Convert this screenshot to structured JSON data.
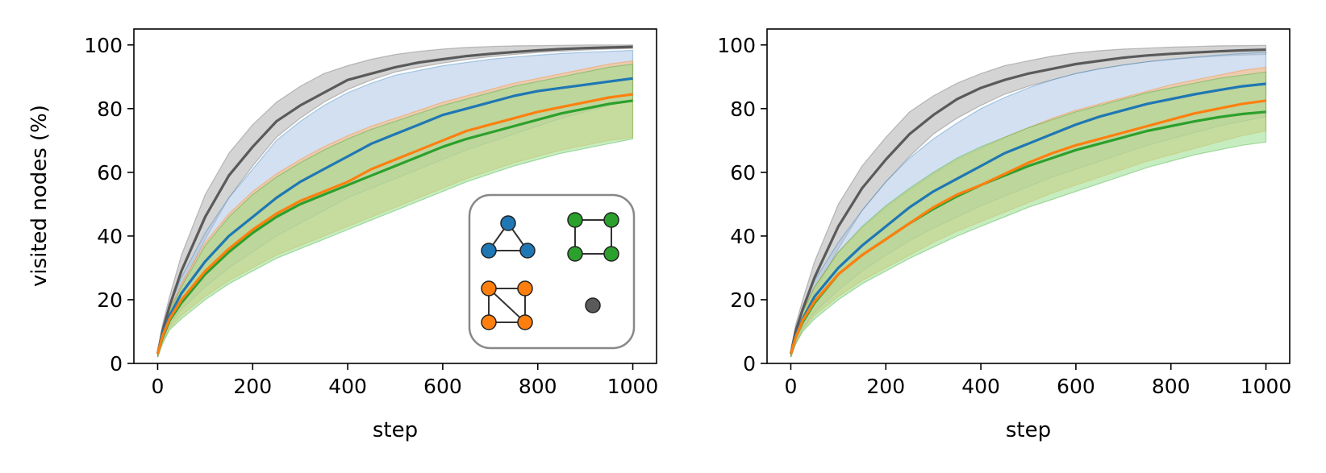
{
  "colors": {
    "triangle": "#1f77b4",
    "triangle_band": "#aec7e8",
    "square_diag": "#ff7f0e",
    "square_diag_band": "#ffbb78",
    "square": "#2ca02c",
    "square_band": "#98df8a",
    "single_node": "#5a5a5a",
    "single_node_band": "#b0b0b0",
    "axis": "#000000"
  },
  "chart_data": [
    {
      "type": "line",
      "panel": "left",
      "xlabel": "step",
      "ylabel": "visited nodes (%)",
      "xlim": [
        -50,
        1050
      ],
      "ylim": [
        0,
        105
      ],
      "xticks": [
        "0",
        "200",
        "400",
        "600",
        "800",
        "1000"
      ],
      "yticks": [
        "0",
        "20",
        "40",
        "60",
        "80",
        "100"
      ],
      "x": [
        0,
        10,
        25,
        50,
        100,
        150,
        200,
        250,
        300,
        350,
        400,
        450,
        500,
        550,
        600,
        650,
        700,
        750,
        800,
        850,
        900,
        950,
        1000
      ],
      "legend": {
        "placement": "lower-right",
        "entries": [
          "triangle-graph-icon",
          "square-graph-icon",
          "square-with-diagonal-graph-icon",
          "single-node-icon"
        ]
      },
      "series": [
        {
          "name": "single node",
          "color_key": "single_node",
          "values": [
            3,
            10,
            18,
            29,
            46,
            59,
            68,
            76,
            81,
            85,
            89,
            91,
            93,
            94.5,
            95.5,
            96.5,
            97.2,
            97.8,
            98.3,
            98.7,
            99,
            99.2,
            99.4
          ],
          "lower": [
            2,
            8,
            15,
            24,
            39,
            52,
            62,
            71,
            77,
            82,
            86,
            89,
            91.5,
            93,
            94.3,
            95.4,
            96.3,
            97,
            97.6,
            98,
            98.4,
            98.7,
            98.9
          ],
          "upper": [
            4,
            12,
            21,
            34,
            53,
            66,
            75,
            82,
            87,
            91,
            93.5,
            95.5,
            97,
            98,
            98.7,
            99.2,
            99.5,
            99.7,
            99.8,
            99.9,
            100,
            100,
            100
          ]
        },
        {
          "name": "triangle",
          "color_key": "triangle",
          "values": [
            3,
            9,
            15,
            22,
            32,
            40,
            46,
            52,
            57,
            61,
            65,
            69,
            72,
            75,
            78,
            80,
            82,
            84,
            85.5,
            86.5,
            87.5,
            88.5,
            89.5
          ],
          "lower": [
            2,
            7,
            12,
            17,
            24,
            30,
            35,
            40,
            44,
            48,
            52,
            55,
            58,
            61,
            64,
            67,
            69.5,
            72,
            74.5,
            77,
            79,
            81,
            82.5
          ],
          "upper": [
            4,
            11,
            18,
            27,
            41,
            52,
            61,
            70,
            76,
            81,
            85,
            88,
            90.5,
            92,
            93.5,
            94.5,
            95.5,
            96.2,
            96.8,
            97.3,
            97.7,
            98,
            98.3
          ]
        },
        {
          "name": "square with diagonal",
          "color_key": "square_diag",
          "values": [
            3,
            8.5,
            14,
            20,
            29,
            36,
            42,
            47,
            51,
            54,
            57,
            61,
            64,
            67,
            70,
            73,
            75,
            77,
            79,
            80.5,
            82,
            83.5,
            84.5
          ],
          "lower": [
            2,
            6.5,
            11,
            15,
            21,
            26,
            30,
            34,
            37,
            40,
            43,
            46,
            49,
            52,
            55,
            58,
            60.5,
            63,
            65,
            67,
            68.5,
            70,
            71
          ],
          "upper": [
            4,
            10.5,
            17,
            25,
            38,
            47,
            54,
            59.5,
            64,
            68,
            71.5,
            74.5,
            77,
            79.5,
            82,
            84,
            86,
            88,
            89.5,
            91,
            92.5,
            94,
            95
          ]
        },
        {
          "name": "square",
          "color_key": "square",
          "values": [
            3,
            8,
            13.5,
            19,
            28,
            35,
            41,
            46,
            50,
            53,
            56,
            59,
            62,
            65,
            68,
            70.5,
            72.5,
            74.5,
            76.5,
            78.5,
            80,
            81.5,
            82.5
          ],
          "lower": [
            2,
            6,
            10.5,
            14,
            20,
            25,
            29,
            33,
            36,
            39,
            42,
            45,
            48,
            51,
            54,
            57,
            59.5,
            62,
            64,
            66,
            67.5,
            69,
            70.5
          ],
          "upper": [
            4,
            10,
            16.5,
            24,
            37,
            46,
            53,
            58.5,
            63,
            67,
            70.5,
            73.5,
            76,
            78.5,
            81,
            83,
            85,
            87,
            88.5,
            90,
            91.5,
            93,
            94
          ]
        }
      ]
    },
    {
      "type": "line",
      "panel": "right",
      "xlabel": "step",
      "ylabel": "",
      "xlim": [
        -50,
        1050
      ],
      "ylim": [
        0,
        105
      ],
      "xticks": [
        "0",
        "200",
        "400",
        "600",
        "800",
        "1000"
      ],
      "yticks": [
        "0",
        "20",
        "40",
        "60",
        "80",
        "100"
      ],
      "x": [
        0,
        10,
        25,
        50,
        100,
        150,
        200,
        250,
        300,
        350,
        400,
        450,
        500,
        550,
        600,
        650,
        700,
        750,
        800,
        850,
        900,
        950,
        1000
      ],
      "series": [
        {
          "name": "single node",
          "color_key": "single_node",
          "values": [
            3,
            10,
            17,
            27,
            43,
            55,
            64,
            72,
            78,
            83,
            86.5,
            89,
            91,
            92.5,
            94,
            95,
            96,
            96.7,
            97.2,
            97.6,
            98,
            98.3,
            98.5
          ],
          "lower": [
            2,
            8,
            14,
            22,
            36,
            48,
            57,
            65,
            72,
            77,
            81,
            84.5,
            87,
            89,
            91,
            92.5,
            93.7,
            94.7,
            95.4,
            96,
            96.5,
            96.8,
            97
          ],
          "upper": [
            4,
            12,
            20,
            32,
            50,
            62,
            71,
            79,
            84,
            88,
            91,
            93.5,
            95,
            96.5,
            97.5,
            98.2,
            98.7,
            99,
            99.3,
            99.5,
            99.7,
            99.8,
            99.9
          ]
        },
        {
          "name": "triangle",
          "color_key": "triangle",
          "values": [
            3,
            8.5,
            14,
            21,
            30,
            37,
            43,
            49,
            54,
            58,
            62,
            66,
            69,
            72,
            75,
            77.5,
            79.5,
            81.5,
            83,
            84.5,
            85.8,
            87,
            87.8
          ],
          "lower": [
            2,
            6.5,
            11,
            16,
            23,
            29,
            34,
            38.5,
            42.5,
            46,
            49.5,
            52.5,
            55.5,
            58.5,
            61,
            63.5,
            66,
            68.5,
            70.5,
            72.5,
            74.5,
            76,
            77.5
          ],
          "upper": [
            4,
            10.5,
            17,
            26,
            38,
            48,
            57,
            64.5,
            70.5,
            75.5,
            80,
            83.5,
            86.5,
            89,
            91,
            92.5,
            93.7,
            94.7,
            95.5,
            96.2,
            96.8,
            97.3,
            97.7
          ]
        },
        {
          "name": "square with diagonal",
          "color_key": "square_diag",
          "values": [
            3,
            8,
            13.5,
            19.5,
            28,
            34,
            39,
            44,
            49,
            53,
            56,
            59.5,
            63,
            66,
            68.5,
            70.5,
            72.5,
            74.5,
            76.5,
            78.5,
            80,
            81.5,
            82.5
          ],
          "lower": [
            2,
            6,
            10.5,
            15,
            21,
            26,
            30,
            34,
            38,
            41.5,
            44.5,
            47.5,
            50.5,
            53.5,
            56,
            58.5,
            61,
            63.5,
            65.5,
            67.5,
            69.5,
            71.5,
            73
          ],
          "upper": [
            4,
            10,
            16.5,
            24,
            35,
            42.5,
            49,
            54.5,
            59.5,
            64,
            67.5,
            71,
            74,
            77,
            79.5,
            81.5,
            83.5,
            85.5,
            87.5,
            89,
            90.5,
            92,
            93
          ]
        },
        {
          "name": "square",
          "color_key": "square",
          "values": [
            3,
            8,
            13,
            19,
            28,
            34,
            39,
            44,
            48.5,
            52.5,
            56,
            59,
            62,
            64.5,
            67,
            69,
            71,
            73,
            74.5,
            76,
            77.3,
            78.3,
            79
          ],
          "lower": [
            2,
            6,
            10,
            14,
            20,
            25,
            29,
            33,
            36.5,
            40,
            43,
            46,
            49,
            51.5,
            54,
            56.5,
            59,
            61.5,
            63.5,
            65.5,
            67,
            68.5,
            69.5
          ],
          "upper": [
            4,
            10,
            16,
            24,
            35,
            43,
            49.5,
            55,
            60,
            64.5,
            68,
            71,
            74,
            76.5,
            79,
            81,
            83,
            85,
            86.5,
            88,
            89.5,
            90.5,
            91.5
          ]
        }
      ]
    }
  ]
}
